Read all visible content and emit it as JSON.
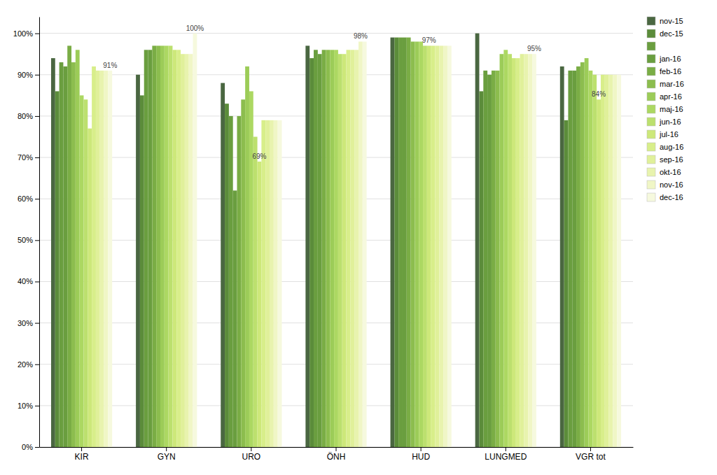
{
  "chart_data": {
    "type": "bar",
    "categories": [
      "KIR",
      "GYN",
      "URO",
      "ÖNH",
      "HUD",
      "LUNGMED",
      "VGR tot"
    ],
    "series": [
      {
        "name": "nov-15",
        "color": "#4a6741",
        "values": [
          94,
          90,
          88,
          97,
          99,
          100,
          92
        ]
      },
      {
        "name": "dec-15",
        "color": "#5b8c3a",
        "values": [
          86,
          85,
          83,
          94,
          99,
          86,
          79
        ]
      },
      {
        "name": null,
        "color": "#6a9e3f",
        "values": [
          93,
          96,
          80,
          96,
          99,
          91,
          91
        ]
      },
      {
        "name": "jan-16",
        "color": "#6a9e3f",
        "values": [
          92,
          96,
          62,
          95,
          99,
          90,
          91
        ]
      },
      {
        "name": "feb-16",
        "color": "#7aad45",
        "values": [
          97,
          97,
          80,
          96,
          99,
          91,
          92
        ]
      },
      {
        "name": "mar-16",
        "color": "#8cbd4e",
        "values": [
          93,
          97,
          84,
          96,
          98,
          91,
          93
        ]
      },
      {
        "name": "apr-16",
        "color": "#9ccc58",
        "values": [
          96,
          97,
          92,
          96,
          98,
          95,
          94
        ]
      },
      {
        "name": "maj-16",
        "color": "#acd862",
        "values": [
          85,
          97,
          86,
          96,
          98,
          96,
          91
        ]
      },
      {
        "name": "jun-16",
        "color": "#bce06e",
        "values": [
          84,
          97,
          75,
          95,
          97,
          95,
          90
        ]
      },
      {
        "name": "jul-16",
        "color": "#cde87a",
        "values": [
          77,
          96,
          69,
          95,
          97,
          94,
          84
        ]
      },
      {
        "name": "aug-16",
        "color": "#d8ee8a",
        "values": [
          92,
          96,
          79,
          96,
          97,
          94,
          90
        ]
      },
      {
        "name": "sep-16",
        "color": "#e0f09a",
        "values": [
          91,
          95,
          79,
          96,
          97,
          95,
          90
        ]
      },
      {
        "name": "okt-16",
        "color": "#e8f3ae",
        "values": [
          91,
          95,
          79,
          96,
          97,
          95,
          90
        ]
      },
      {
        "name": "nov-16",
        "color": "#f0f6c6",
        "values": [
          91,
          95,
          79,
          98,
          97,
          95,
          90
        ]
      },
      {
        "name": "dec-16",
        "color": "#f6f9de",
        "values": [
          91,
          100,
          79,
          98,
          97,
          95,
          90
        ]
      }
    ],
    "annotations": [
      {
        "text": "91%",
        "category": "KIR",
        "series": "dec-16"
      },
      {
        "text": "100%",
        "category": "GYN",
        "series": "dec-16"
      },
      {
        "text": "69%",
        "category": "URO",
        "series": "jul-16"
      },
      {
        "text": "98%",
        "category": "ÖNH",
        "series": "nov-16"
      },
      {
        "text": "97%",
        "category": "HUD",
        "series": "jul-16"
      },
      {
        "text": "95%",
        "category": "LUNGMED",
        "series": "dec-16"
      },
      {
        "text": "84%",
        "category": "VGR tot",
        "series": "jul-16"
      }
    ],
    "ylim": [
      0,
      104
    ],
    "yticks": [
      {
        "value": 0,
        "label": "0%"
      },
      {
        "value": 10,
        "label": "10%"
      },
      {
        "value": 20,
        "label": "20%"
      },
      {
        "value": 30,
        "label": "30%"
      },
      {
        "value": 40,
        "label": "40%"
      },
      {
        "value": 50,
        "label": "50%"
      },
      {
        "value": 60,
        "label": "60%"
      },
      {
        "value": 70,
        "label": "70%"
      },
      {
        "value": 80,
        "label": "80%"
      },
      {
        "value": 90,
        "label": "90%"
      },
      {
        "value": 100,
        "label": "100%"
      }
    ],
    "grid": true,
    "legend": "right"
  }
}
